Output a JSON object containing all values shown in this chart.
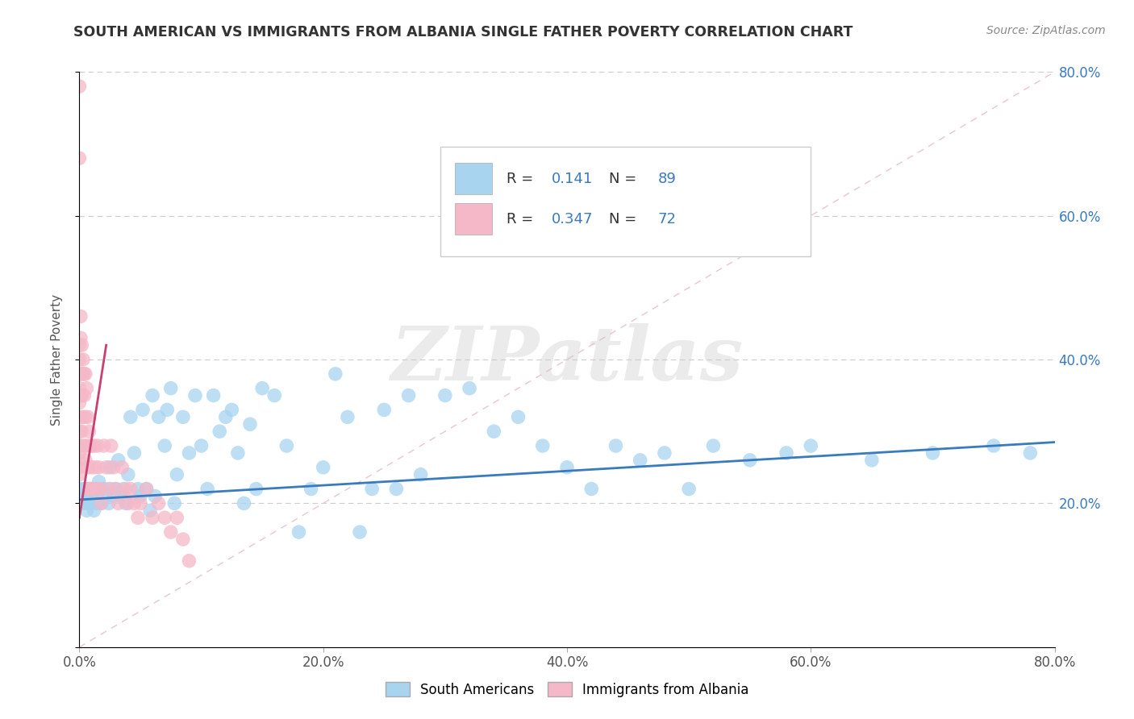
{
  "title": "SOUTH AMERICAN VS IMMIGRANTS FROM ALBANIA SINGLE FATHER POVERTY CORRELATION CHART",
  "source": "Source: ZipAtlas.com",
  "ylabel": "Single Father Poverty",
  "watermark": "ZIPatlas",
  "legend1_label": "South Americans",
  "legend2_label": "Immigrants from Albania",
  "r1": 0.141,
  "n1": 89,
  "r2": 0.347,
  "n2": 72,
  "color1": "#a8d4f0",
  "color2": "#f5b8c8",
  "line1_color": "#3a7abf",
  "line2_color": "#c94070",
  "diag_color": "#e0b8c8",
  "grid_color": "#cccccc",
  "xlim": [
    0,
    0.8
  ],
  "ylim": [
    0,
    0.8
  ],
  "xtick_vals": [
    0.0,
    0.2,
    0.4,
    0.6,
    0.8
  ],
  "xtick_labels": [
    "0.0%",
    "20.0%",
    "40.0%",
    "60.0%",
    "80.0%"
  ],
  "ytick_right_vals": [
    0.2,
    0.4,
    0.6,
    0.8
  ],
  "ytick_right_labels": [
    "20.0%",
    "40.0%",
    "60.0%",
    "80.0%"
  ],
  "south_american_x": [
    0.001,
    0.002,
    0.003,
    0.004,
    0.005,
    0.006,
    0.007,
    0.008,
    0.009,
    0.01,
    0.012,
    0.013,
    0.014,
    0.015,
    0.016,
    0.018,
    0.02,
    0.022,
    0.024,
    0.025,
    0.026,
    0.028,
    0.03,
    0.032,
    0.034,
    0.036,
    0.038,
    0.04,
    0.042,
    0.045,
    0.048,
    0.05,
    0.052,
    0.055,
    0.058,
    0.06,
    0.062,
    0.065,
    0.07,
    0.072,
    0.075,
    0.078,
    0.08,
    0.085,
    0.09,
    0.095,
    0.1,
    0.105,
    0.11,
    0.115,
    0.12,
    0.125,
    0.13,
    0.135,
    0.14,
    0.145,
    0.15,
    0.16,
    0.17,
    0.18,
    0.19,
    0.2,
    0.21,
    0.22,
    0.23,
    0.24,
    0.25,
    0.26,
    0.27,
    0.28,
    0.3,
    0.32,
    0.34,
    0.36,
    0.38,
    0.4,
    0.42,
    0.44,
    0.46,
    0.48,
    0.5,
    0.52,
    0.55,
    0.58,
    0.6,
    0.65,
    0.7,
    0.75,
    0.78
  ],
  "south_american_y": [
    0.22,
    0.21,
    0.2,
    0.22,
    0.21,
    0.19,
    0.2,
    0.22,
    0.2,
    0.21,
    0.19,
    0.22,
    0.21,
    0.2,
    0.23,
    0.2,
    0.22,
    0.21,
    0.2,
    0.25,
    0.22,
    0.21,
    0.22,
    0.26,
    0.21,
    0.22,
    0.2,
    0.24,
    0.32,
    0.27,
    0.22,
    0.21,
    0.33,
    0.22,
    0.19,
    0.35,
    0.21,
    0.32,
    0.28,
    0.33,
    0.36,
    0.2,
    0.24,
    0.32,
    0.27,
    0.35,
    0.28,
    0.22,
    0.35,
    0.3,
    0.32,
    0.33,
    0.27,
    0.2,
    0.31,
    0.22,
    0.36,
    0.35,
    0.28,
    0.16,
    0.22,
    0.25,
    0.38,
    0.32,
    0.16,
    0.22,
    0.33,
    0.22,
    0.35,
    0.24,
    0.35,
    0.36,
    0.3,
    0.32,
    0.28,
    0.25,
    0.22,
    0.28,
    0.26,
    0.27,
    0.22,
    0.28,
    0.26,
    0.27,
    0.28,
    0.26,
    0.27,
    0.28,
    0.27
  ],
  "albania_x": [
    0.0,
    0.0,
    0.0,
    0.0,
    0.0,
    0.0,
    0.0,
    0.0,
    0.0,
    0.0,
    0.0,
    0.0,
    0.0,
    0.001,
    0.001,
    0.001,
    0.001,
    0.001,
    0.001,
    0.002,
    0.002,
    0.002,
    0.002,
    0.003,
    0.003,
    0.003,
    0.004,
    0.004,
    0.004,
    0.005,
    0.005,
    0.005,
    0.006,
    0.006,
    0.007,
    0.007,
    0.008,
    0.008,
    0.009,
    0.009,
    0.01,
    0.01,
    0.011,
    0.012,
    0.013,
    0.014,
    0.015,
    0.016,
    0.017,
    0.018,
    0.02,
    0.022,
    0.024,
    0.026,
    0.028,
    0.03,
    0.032,
    0.035,
    0.038,
    0.04,
    0.042,
    0.045,
    0.048,
    0.05,
    0.055,
    0.06,
    0.065,
    0.07,
    0.075,
    0.08,
    0.085,
    0.09
  ],
  "albania_y": [
    0.78,
    0.68,
    0.42,
    0.4,
    0.38,
    0.36,
    0.34,
    0.3,
    0.28,
    0.27,
    0.26,
    0.25,
    0.24,
    0.46,
    0.43,
    0.38,
    0.35,
    0.32,
    0.28,
    0.42,
    0.38,
    0.35,
    0.3,
    0.4,
    0.38,
    0.32,
    0.38,
    0.35,
    0.28,
    0.38,
    0.32,
    0.26,
    0.36,
    0.28,
    0.32,
    0.25,
    0.3,
    0.22,
    0.28,
    0.22,
    0.28,
    0.25,
    0.22,
    0.28,
    0.25,
    0.22,
    0.28,
    0.25,
    0.22,
    0.2,
    0.28,
    0.25,
    0.22,
    0.28,
    0.25,
    0.22,
    0.2,
    0.25,
    0.22,
    0.2,
    0.22,
    0.2,
    0.18,
    0.2,
    0.22,
    0.18,
    0.2,
    0.18,
    0.16,
    0.18,
    0.15,
    0.12
  ],
  "sa_trend_x": [
    0.0,
    0.8
  ],
  "sa_trend_y": [
    0.205,
    0.285
  ],
  "al_trend_x": [
    0.0,
    0.022
  ],
  "al_trend_y": [
    0.18,
    0.42
  ]
}
